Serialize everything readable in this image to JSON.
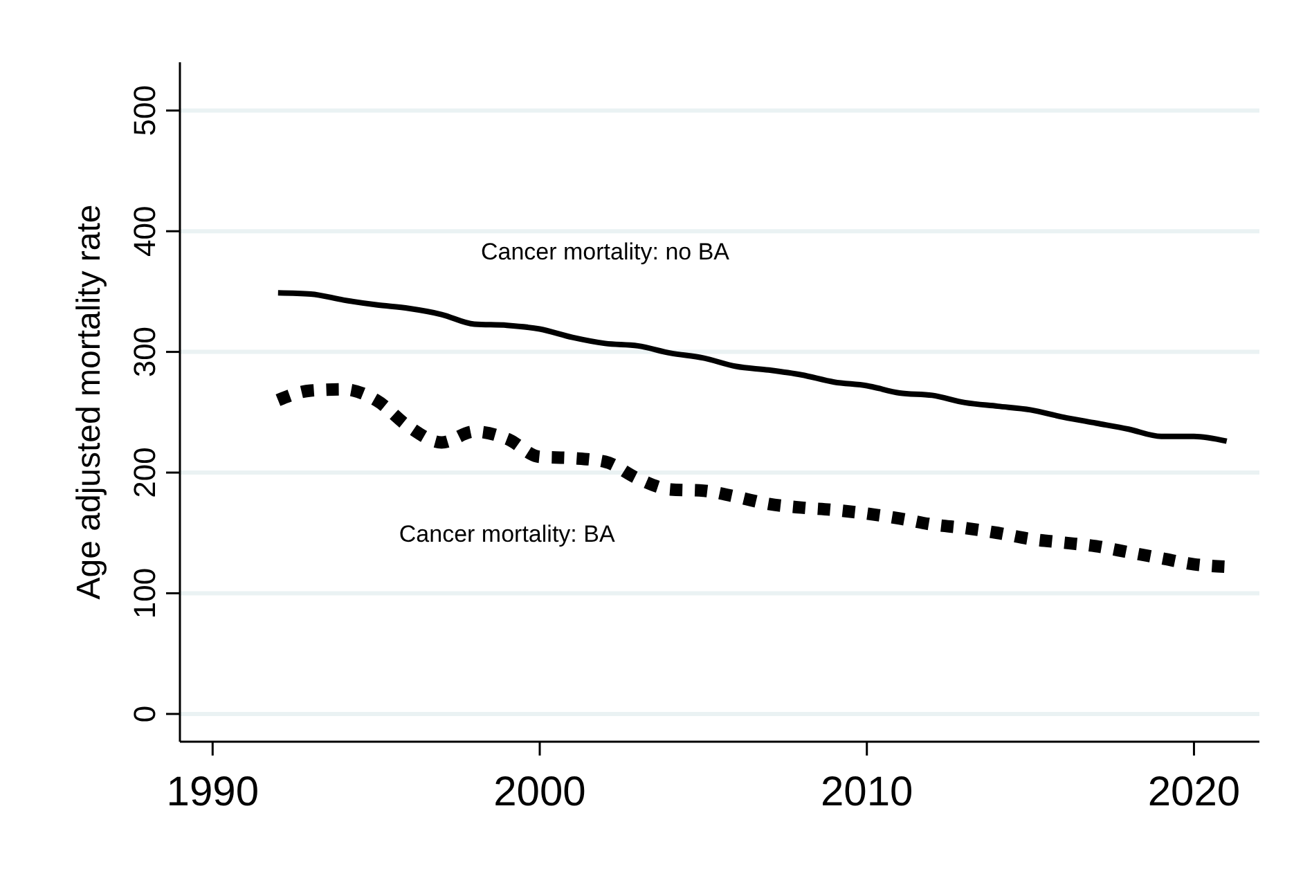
{
  "chart_data": {
    "type": "line",
    "ylabel": "Age adjusted mortality rate",
    "x": [
      1992,
      1993,
      1994,
      1995,
      1996,
      1997,
      1998,
      1999,
      2000,
      2001,
      2002,
      2003,
      2004,
      2005,
      2006,
      2007,
      2008,
      2009,
      2010,
      2011,
      2012,
      2013,
      2014,
      2015,
      2016,
      2017,
      2018,
      2019,
      2020,
      2021
    ],
    "series": [
      {
        "name": "Cancer mortality: no BA",
        "color": "#000000",
        "line_style": "solid",
        "values": [
          349,
          348,
          343,
          339,
          336,
          331,
          323,
          322,
          319,
          312,
          307,
          305,
          299,
          295,
          288,
          285,
          281,
          275,
          272,
          266,
          264,
          258,
          255,
          252,
          246,
          241,
          236,
          230,
          230,
          226
        ]
      },
      {
        "name": "Cancer mortality: BA",
        "color": "#000000",
        "line_style": "dotted",
        "values": [
          260,
          268,
          269,
          260,
          238,
          225,
          234,
          228,
          213,
          212,
          209,
          195,
          186,
          185,
          180,
          174,
          171,
          169,
          166,
          162,
          157,
          154,
          150,
          145,
          142,
          139,
          134,
          129,
          124,
          122
        ]
      }
    ],
    "xlim": [
      1989,
      2022
    ],
    "xticks": [
      1990,
      2000,
      2010,
      2020
    ],
    "ylim": [
      -23,
      540
    ],
    "yticks": [
      0,
      100,
      200,
      300,
      400,
      500
    ],
    "grid": "y"
  }
}
